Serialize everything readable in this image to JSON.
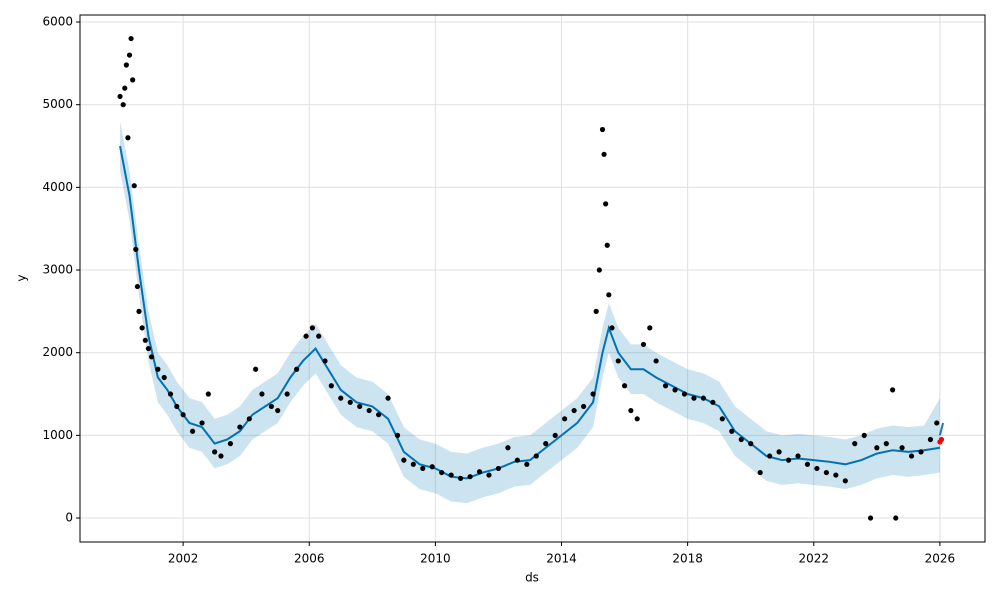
{
  "chart_data": {
    "type": "forecast",
    "xlabel": "ds",
    "ylabel": "y",
    "xlim": [
      1998.73,
      2027.43
    ],
    "ylim": [
      -290,
      6085
    ],
    "xticks": [
      2002,
      2006,
      2010,
      2014,
      2018,
      2022,
      2026
    ],
    "yticks": [
      0,
      1000,
      2000,
      3000,
      4000,
      5000,
      6000
    ],
    "grid": true,
    "series": [
      {
        "type": "band",
        "color": "#0072b2",
        "x": [
          2000.0,
          2000.3,
          2000.6,
          2000.9,
          2001.2,
          2001.5,
          2001.8,
          2002.2,
          2002.6,
          2003.0,
          2003.4,
          2003.8,
          2004.2,
          2004.6,
          2005.0,
          2005.4,
          2005.8,
          2006.2,
          2006.6,
          2007.0,
          2007.5,
          2008.0,
          2008.5,
          2009.0,
          2009.5,
          2010.0,
          2010.5,
          2011.0,
          2011.5,
          2012.0,
          2012.5,
          2013.0,
          2013.5,
          2014.0,
          2014.5,
          2015.0,
          2015.3,
          2015.5,
          2015.8,
          2016.2,
          2016.6,
          2017.0,
          2017.5,
          2018.0,
          2018.5,
          2019.0,
          2019.5,
          2020.0,
          2020.5,
          2021.0,
          2021.5,
          2022.0,
          2022.5,
          2023.0,
          2023.5,
          2024.0,
          2024.5,
          2025.0,
          2025.5,
          2026.0
        ],
        "lower": [
          4200,
          3600,
          2700,
          1900,
          1400,
          1250,
          1050,
          850,
          800,
          600,
          650,
          750,
          950,
          1050,
          1150,
          1400,
          1600,
          1750,
          1500,
          1250,
          1100,
          1050,
          900,
          500,
          350,
          300,
          200,
          180,
          250,
          300,
          380,
          400,
          550,
          700,
          850,
          1100,
          1700,
          2000,
          1700,
          1500,
          1500,
          1400,
          1300,
          1200,
          1150,
          1050,
          750,
          600,
          450,
          400,
          420,
          400,
          380,
          350,
          400,
          480,
          520,
          500,
          520,
          550
        ],
        "upper": [
          4800,
          4200,
          3300,
          2500,
          2000,
          1850,
          1650,
          1450,
          1400,
          1200,
          1250,
          1350,
          1550,
          1650,
          1750,
          2000,
          2200,
          2350,
          2100,
          1850,
          1700,
          1650,
          1500,
          1100,
          950,
          900,
          800,
          780,
          850,
          900,
          980,
          1000,
          1150,
          1300,
          1450,
          1700,
          2300,
          2600,
          2300,
          2100,
          2100,
          2000,
          1900,
          1800,
          1750,
          1650,
          1350,
          1200,
          1050,
          1000,
          1020,
          1000,
          980,
          950,
          1000,
          1080,
          1120,
          1100,
          1120,
          1450
        ]
      },
      {
        "type": "line",
        "color": "#0072b2",
        "x": [
          2000.0,
          2000.3,
          2000.6,
          2000.9,
          2001.2,
          2001.5,
          2001.8,
          2002.2,
          2002.6,
          2003.0,
          2003.4,
          2003.8,
          2004.2,
          2004.6,
          2005.0,
          2005.4,
          2005.8,
          2006.2,
          2006.6,
          2007.0,
          2007.5,
          2008.0,
          2008.5,
          2009.0,
          2009.5,
          2010.0,
          2010.5,
          2011.0,
          2011.5,
          2012.0,
          2012.5,
          2013.0,
          2013.5,
          2014.0,
          2014.5,
          2015.0,
          2015.3,
          2015.5,
          2015.8,
          2016.2,
          2016.6,
          2017.0,
          2017.5,
          2018.0,
          2018.5,
          2019.0,
          2019.5,
          2020.0,
          2020.5,
          2021.0,
          2021.5,
          2022.0,
          2022.5,
          2023.0,
          2023.5,
          2024.0,
          2024.5,
          2025.0,
          2025.5,
          2026.0
        ],
        "values": [
          4500,
          3900,
          3000,
          2200,
          1700,
          1550,
          1350,
          1150,
          1100,
          900,
          950,
          1050,
          1250,
          1350,
          1450,
          1700,
          1900,
          2050,
          1800,
          1550,
          1400,
          1350,
          1200,
          800,
          650,
          600,
          500,
          480,
          550,
          600,
          680,
          700,
          850,
          1000,
          1150,
          1400,
          2000,
          2300,
          2000,
          1800,
          1800,
          1700,
          1600,
          1500,
          1450,
          1350,
          1050,
          900,
          750,
          700,
          720,
          700,
          680,
          650,
          700,
          780,
          820,
          800,
          820,
          850
        ]
      },
      {
        "type": "scatter",
        "color": "#000000",
        "x": [
          2000.0,
          2000.1,
          2000.15,
          2000.2,
          2000.25,
          2000.3,
          2000.35,
          2000.4,
          2000.45,
          2000.5,
          2000.55,
          2000.6,
          2000.7,
          2000.8,
          2000.9,
          2001.0,
          2001.2,
          2001.4,
          2001.6,
          2001.8,
          2002.0,
          2002.3,
          2002.6,
          2002.8,
          2003.0,
          2003.2,
          2003.5,
          2003.8,
          2004.1,
          2004.3,
          2004.5,
          2004.8,
          2005.0,
          2005.3,
          2005.6,
          2005.9,
          2006.1,
          2006.3,
          2006.5,
          2006.7,
          2007.0,
          2007.3,
          2007.6,
          2007.9,
          2008.2,
          2008.5,
          2008.8,
          2009.0,
          2009.3,
          2009.6,
          2009.9,
          2010.2,
          2010.5,
          2010.8,
          2011.1,
          2011.4,
          2011.7,
          2012.0,
          2012.3,
          2012.6,
          2012.9,
          2013.2,
          2013.5,
          2013.8,
          2014.1,
          2014.4,
          2014.7,
          2015.0,
          2015.1,
          2015.2,
          2015.3,
          2015.35,
          2015.4,
          2015.45,
          2015.5,
          2015.6,
          2015.8,
          2016.0,
          2016.2,
          2016.4,
          2016.6,
          2016.8,
          2017.0,
          2017.3,
          2017.6,
          2017.9,
          2018.2,
          2018.5,
          2018.8,
          2019.1,
          2019.4,
          2019.7,
          2020.0,
          2020.3,
          2020.6,
          2020.9,
          2021.2,
          2021.5,
          2021.8,
          2022.1,
          2022.4,
          2022.7,
          2023.0,
          2023.3,
          2023.6,
          2023.8,
          2024.0,
          2024.3,
          2024.5,
          2024.6,
          2024.8,
          2025.1,
          2025.4,
          2025.7,
          2025.9
        ],
        "values": [
          5100,
          5000,
          5200,
          5480,
          4600,
          5600,
          5800,
          5300,
          4020,
          3250,
          2800,
          2500,
          2300,
          2150,
          2050,
          1950,
          1800,
          1700,
          1500,
          1350,
          1250,
          1050,
          1150,
          1500,
          800,
          750,
          900,
          1100,
          1200,
          1800,
          1500,
          1350,
          1300,
          1500,
          1800,
          2200,
          2300,
          2200,
          1900,
          1600,
          1450,
          1400,
          1350,
          1300,
          1250,
          1450,
          1000,
          700,
          650,
          600,
          620,
          550,
          520,
          480,
          500,
          560,
          520,
          600,
          850,
          700,
          650,
          750,
          900,
          1000,
          1200,
          1300,
          1350,
          1500,
          2500,
          3000,
          4700,
          4400,
          3800,
          3300,
          2700,
          2300,
          1900,
          1600,
          1300,
          1200,
          2100,
          2300,
          1900,
          1600,
          1550,
          1500,
          1450,
          1450,
          1400,
          1200,
          1050,
          950,
          900,
          550,
          750,
          800,
          700,
          750,
          650,
          600,
          550,
          520,
          450,
          900,
          1000,
          0,
          850,
          900,
          1550,
          0,
          850,
          750,
          800,
          950,
          1150
        ]
      },
      {
        "type": "scatter",
        "color": "#ff0000",
        "x": [
          2026.0,
          2026.05
        ],
        "values": [
          920,
          950
        ]
      },
      {
        "type": "line",
        "color": "#1f77b4",
        "x": [
          2026.0,
          2026.1
        ],
        "values": [
          1000,
          1150
        ]
      }
    ]
  }
}
